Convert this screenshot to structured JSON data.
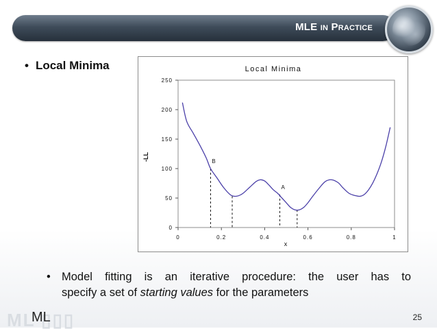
{
  "slide": {
    "title_main": "MLE",
    "title_small": "IN",
    "title_main2": "P",
    "title_small2": "RACTICE",
    "bullet_main": "Local Minima",
    "sub_bullet_line1": "Model fitting is an iterative procedure: the user has to",
    "sub_bullet_line2_pre": "specify a set of ",
    "sub_bullet_line2_em": "starting values",
    "sub_bullet_line2_post": " for the parameters",
    "footer_label": "ML",
    "footer_deco": "ML ▯▯▯",
    "page_number": "25"
  },
  "chart_data": {
    "type": "line",
    "title": "Local Minima",
    "xlabel": "x",
    "ylabel": "-LL",
    "xlim": [
      0,
      1
    ],
    "ylim": [
      0,
      250
    ],
    "x_ticks": [
      "0",
      "0.2",
      "0.4",
      "0.6",
      "0.8",
      "1"
    ],
    "y_ticks": [
      "0",
      "50",
      "100",
      "150",
      "200",
      "250"
    ],
    "grid": false,
    "line_color": "#4a3fa8",
    "series": [
      {
        "x": [
          0.02,
          0.04,
          0.07,
          0.1,
          0.13,
          0.15,
          0.18,
          0.21,
          0.24,
          0.26,
          0.28,
          0.3,
          0.33,
          0.36,
          0.38,
          0.4,
          0.42,
          0.44,
          0.46,
          0.48,
          0.5,
          0.52,
          0.54,
          0.56,
          0.58,
          0.6,
          0.62,
          0.65,
          0.68,
          0.71,
          0.74,
          0.76,
          0.79,
          0.82,
          0.84,
          0.86,
          0.88,
          0.9,
          0.92,
          0.94,
          0.96,
          0.98
        ],
        "y": [
          212,
          180,
          160,
          140,
          118,
          100,
          84,
          68,
          56,
          53,
          54,
          58,
          68,
          78,
          81,
          79,
          72,
          64,
          58,
          50,
          42,
          34,
          30,
          30,
          34,
          42,
          52,
          66,
          78,
          81,
          76,
          68,
          58,
          54,
          53,
          56,
          64,
          76,
          92,
          112,
          138,
          170
        ]
      }
    ],
    "markers": [
      {
        "label": "B",
        "x": 0.15,
        "y": 100
      },
      {
        "label": "",
        "x": 0.25,
        "y": 53
      },
      {
        "label": "A",
        "x": 0.47,
        "y": 56
      },
      {
        "label": "",
        "x": 0.55,
        "y": 30
      }
    ]
  }
}
